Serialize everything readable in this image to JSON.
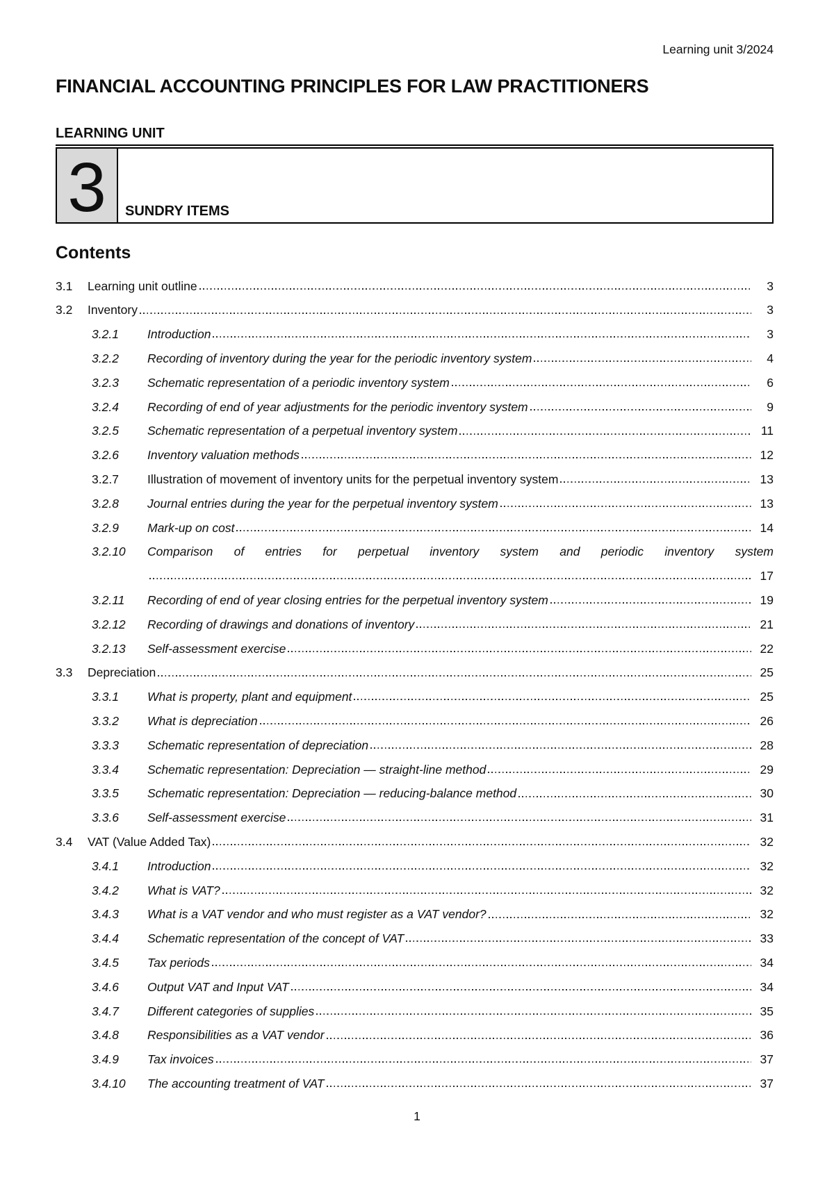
{
  "header": {
    "reference": "Learning unit 3/2024"
  },
  "title": "FINANCIAL ACCOUNTING PRINCIPLES FOR LAW PRACTITIONERS",
  "unit": {
    "label": "LEARNING UNIT",
    "number": "3",
    "name": "SUNDRY ITEMS"
  },
  "contents": {
    "heading": "Contents",
    "entries": [
      {
        "num": "3.1",
        "title": "Learning unit outline",
        "page": "3",
        "level": 1,
        "italic": false
      },
      {
        "num": "3.2",
        "title": "Inventory",
        "page": "3",
        "level": 1,
        "italic": false
      },
      {
        "num": "3.2.1",
        "title": "Introduction",
        "page": "3",
        "level": 2,
        "italic": true
      },
      {
        "num": "3.2.2",
        "title": "Recording of inventory during the year for the periodic inventory system",
        "page": "4",
        "level": 2,
        "italic": true
      },
      {
        "num": "3.2.3",
        "title": "Schematic representation of a periodic inventory system",
        "page": "6",
        "level": 2,
        "italic": true
      },
      {
        "num": "3.2.4",
        "title": "Recording of end of year adjustments for the periodic inventory system",
        "page": "9",
        "level": 2,
        "italic": true
      },
      {
        "num": "3.2.5",
        "title": "Schematic representation of a perpetual inventory system",
        "page": "11",
        "level": 2,
        "italic": true
      },
      {
        "num": "3.2.6",
        "title": "Inventory valuation methods",
        "page": "12",
        "level": 2,
        "italic": true
      },
      {
        "num": "3.2.7",
        "title": "Illustration of movement of inventory units for the perpetual inventory system",
        "page": "13",
        "level": 2,
        "italic": false
      },
      {
        "num": "3.2.8",
        "title": "Journal entries during the year for the perpetual inventory system",
        "page": "13",
        "level": 2,
        "italic": true
      },
      {
        "num": "3.2.9",
        "title": "Mark-up on cost",
        "page": "14",
        "level": 2,
        "italic": true
      },
      {
        "num": "3.2.10",
        "title": "Comparison of entries for perpetual inventory system and periodic inventory system",
        "page": "17",
        "level": 2,
        "italic": true,
        "wrap": true
      },
      {
        "num": "3.2.11",
        "title": "Recording of end of year closing entries for the perpetual inventory system",
        "page": "19",
        "level": 2,
        "italic": true
      },
      {
        "num": "3.2.12",
        "title": "Recording of drawings and donations of inventory",
        "page": "21",
        "level": 2,
        "italic": true
      },
      {
        "num": "3.2.13",
        "title": "Self-assessment exercise",
        "page": "22",
        "level": 2,
        "italic": true
      },
      {
        "num": "3.3",
        "title": "Depreciation",
        "page": "25",
        "level": 1,
        "italic": false
      },
      {
        "num": "3.3.1",
        "title": "What is property, plant and equipment",
        "page": "25",
        "level": 2,
        "italic": true
      },
      {
        "num": "3.3.2",
        "title": "What is depreciation",
        "page": "26",
        "level": 2,
        "italic": true
      },
      {
        "num": "3.3.3",
        "title": "Schematic representation of depreciation",
        "page": "28",
        "level": 2,
        "italic": true
      },
      {
        "num": "3.3.4",
        "title": "Schematic representation: Depreciation — straight-line method",
        "page": "29",
        "level": 2,
        "italic": true
      },
      {
        "num": "3.3.5",
        "title": "Schematic representation: Depreciation — reducing-balance method",
        "page": "30",
        "level": 2,
        "italic": true
      },
      {
        "num": "3.3.6",
        "title": "Self-assessment exercise",
        "page": "31",
        "level": 2,
        "italic": true
      },
      {
        "num": "3.4",
        "title": "VAT (Value Added Tax)",
        "page": "32",
        "level": 1,
        "italic": false
      },
      {
        "num": "3.4.1",
        "title": "Introduction",
        "page": "32",
        "level": 2,
        "italic": true
      },
      {
        "num": "3.4.2",
        "title": "What is VAT?",
        "page": "32",
        "level": 2,
        "italic": true
      },
      {
        "num": "3.4.3",
        "title": "What is a VAT vendor and who must register as a VAT vendor?",
        "page": "32",
        "level": 2,
        "italic": true
      },
      {
        "num": "3.4.4",
        "title": "Schematic representation of the concept of VAT",
        "page": "33",
        "level": 2,
        "italic": true
      },
      {
        "num": "3.4.5",
        "title": "Tax periods",
        "page": "34",
        "level": 2,
        "italic": true
      },
      {
        "num": "3.4.6",
        "title": "Output VAT and Input VAT",
        "page": "34",
        "level": 2,
        "italic": true
      },
      {
        "num": "3.4.7",
        "title": "Different categories of supplies",
        "page": "35",
        "level": 2,
        "italic": true
      },
      {
        "num": "3.4.8",
        "title": "Responsibilities as a VAT vendor",
        "page": "36",
        "level": 2,
        "italic": true
      },
      {
        "num": "3.4.9",
        "title": "Tax invoices",
        "page": "37",
        "level": 2,
        "italic": true
      },
      {
        "num": "3.4.10",
        "title": "The accounting treatment of VAT",
        "page": "37",
        "level": 2,
        "italic": true
      }
    ]
  },
  "footer": {
    "page": "1"
  }
}
